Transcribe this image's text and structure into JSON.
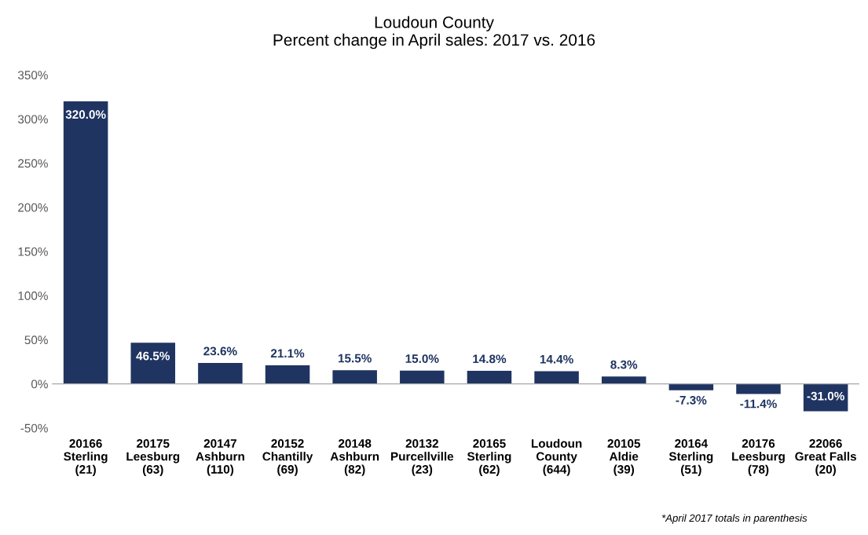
{
  "chart_data": {
    "type": "bar",
    "title": "Loudoun County\nPercent change in April sales: 2017 vs. 2016",
    "categories": [
      "20166\nSterling\n(21)",
      "20175\nLeesburg\n(63)",
      "20147\nAshburn\n(110)",
      "20152\nChantilly\n(69)",
      "20148\nAshburn\n(82)",
      "20132\nPurcellville\n(23)",
      "20165\nSterling\n(62)",
      "Loudoun\nCounty\n(644)",
      "20105\nAldie\n(39)",
      "20164\nSterling\n(51)",
      "20176\nLeesburg\n(78)",
      "22066\nGreat Falls\n(20)"
    ],
    "values": [
      320.0,
      46.5,
      23.6,
      21.1,
      15.5,
      15.0,
      14.8,
      14.4,
      8.3,
      -7.3,
      -11.4,
      -31.0
    ],
    "color": "#1f3461",
    "value_labels": [
      "320.0%",
      "46.5%",
      "23.6%",
      "21.1%",
      "15.5%",
      "15.0%",
      "14.8%",
      "14.4%",
      "8.3%",
      "-7.3%",
      "-11.4%",
      "-31.0%"
    ],
    "ylim": [
      -50,
      350
    ],
    "yticks": [
      {
        "value": -50,
        "label": "-50%"
      },
      {
        "value": 0,
        "label": "0%"
      },
      {
        "value": 50,
        "label": "50%"
      },
      {
        "value": 100,
        "label": "100%"
      },
      {
        "value": 150,
        "label": "150%"
      },
      {
        "value": 200,
        "label": "200%"
      },
      {
        "value": 250,
        "label": "250%"
      },
      {
        "value": 300,
        "label": "300%"
      },
      {
        "value": 350,
        "label": "350%"
      }
    ],
    "annotations": [
      "*April 2017 totals in parenthesis"
    ]
  }
}
